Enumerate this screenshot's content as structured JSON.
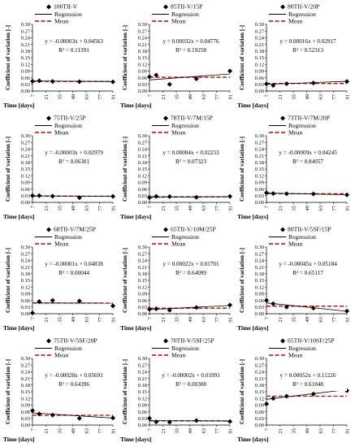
{
  "common": {
    "ylabel": "Coefficient of variation [-]",
    "xlabel": "Time [days]",
    "regression_label": "Regression",
    "mean_label": "Mean",
    "colors": {
      "points": "#000000",
      "regression": "#000000",
      "mean": "#c00000"
    }
  },
  "chart_data": [
    {
      "type": "scatter",
      "title": "100TII-V",
      "equation": "y = -0.00003x + 0.04563",
      "r2": "R² = 0.11391",
      "x": [
        7,
        14,
        28,
        56,
        91
      ],
      "y": [
        0.044,
        0.046,
        0.043,
        0.042,
        0.041
      ],
      "regression": [
        0.0454,
        0.0429
      ],
      "mean": 0.043,
      "xticks": [
        "7",
        "21",
        "35",
        "49",
        "63",
        "77",
        "91"
      ],
      "yticks": [
        "0.00",
        "0.03",
        "0.06",
        "0.09",
        "0.12",
        "0.15",
        "0.18",
        "0.21",
        "0.24",
        "0.27",
        "0.30"
      ],
      "xlim": [
        7,
        91
      ],
      "ylim": [
        0,
        0.3
      ]
    },
    {
      "type": "scatter",
      "title": "85TII-V/15P",
      "equation": "y = 0.00032x + 0.04776",
      "r2": "R² = 0.19258",
      "x": [
        7,
        14,
        28,
        56,
        91
      ],
      "y": [
        0.064,
        0.072,
        0.03,
        0.055,
        0.09
      ],
      "regression": [
        0.05,
        0.0769
      ],
      "mean": 0.062,
      "xticks": [
        "7",
        "21",
        "35",
        "49",
        "63",
        "77",
        "91"
      ],
      "yticks": [
        "0.00",
        "0.03",
        "0.06",
        "0.09",
        "0.12",
        "0.15",
        "0.18",
        "0.21",
        "0.24",
        "0.27",
        "0.30"
      ],
      "xlim": [
        7,
        91
      ],
      "ylim": [
        0,
        0.3
      ]
    },
    {
      "type": "scatter",
      "title": "80TII-V/20P",
      "equation": "y = 0.00016x + 0.02917",
      "r2": "R² = 0.52313",
      "x": [
        7,
        14,
        28,
        56,
        91
      ],
      "y": [
        0.032,
        0.025,
        0.033,
        0.036,
        0.043
      ],
      "regression": [
        0.0303,
        0.0437
      ],
      "mean": 0.034,
      "xticks": [
        "7",
        "21",
        "35",
        "49",
        "63",
        "77",
        "91"
      ],
      "yticks": [
        "0.00",
        "0.03",
        "0.06",
        "0.09",
        "0.12",
        "0.15",
        "0.18",
        "0.21",
        "0.24",
        "0.27",
        "0.30"
      ],
      "xlim": [
        7,
        91
      ],
      "ylim": [
        0,
        0.3
      ]
    },
    {
      "type": "scatter",
      "title": "75TII-V/25P",
      "equation": "y = -0.00003x + 0.02979",
      "r2": "R² = 0.06301",
      "x": [
        7,
        14,
        28,
        56,
        91
      ],
      "y": [
        0.03,
        0.03,
        0.028,
        0.021,
        0.027
      ],
      "regression": [
        0.0296,
        0.0271
      ],
      "mean": 0.028,
      "xticks": [
        "7",
        "21",
        "35",
        "49",
        "63",
        "77",
        "91"
      ],
      "yticks": [
        "0.00",
        "0.03",
        "0.06",
        "0.09",
        "0.12",
        "0.15",
        "0.18",
        "0.21",
        "0.24",
        "0.27",
        "0.30"
      ],
      "xlim": [
        7,
        91
      ],
      "ylim": [
        0,
        0.3
      ]
    },
    {
      "type": "scatter",
      "title": "78TII-V/7M/15P",
      "equation": "y = 0.00004x + 0.02233",
      "r2": "R² = 0.07323",
      "x": [
        7,
        14,
        28,
        56,
        91
      ],
      "y": [
        0.022,
        0.027,
        0.026,
        0.023,
        0.027
      ],
      "regression": [
        0.0226,
        0.026
      ],
      "mean": 0.025,
      "xticks": [
        "7",
        "21",
        "35",
        "49",
        "63",
        "77",
        "91"
      ],
      "yticks": [
        "0.00",
        "0.03",
        "0.06",
        "0.09",
        "0.12",
        "0.15",
        "0.18",
        "0.21",
        "0.24",
        "0.27",
        "0.30"
      ],
      "xlim": [
        7,
        91
      ],
      "ylim": [
        0,
        0.3
      ]
    },
    {
      "type": "scatter",
      "title": "73TII-V/7M/20P",
      "equation": "y = -0.00009x + 0.04245",
      "r2": "R² = 0.84057",
      "x": [
        7,
        14,
        28,
        56,
        91
      ],
      "y": [
        0.043,
        0.04,
        0.039,
        0.038,
        0.034
      ],
      "regression": [
        0.0418,
        0.0343
      ],
      "mean": 0.039,
      "xticks": [
        "7",
        "21",
        "35",
        "49",
        "63",
        "77",
        "91"
      ],
      "yticks": [
        "0.00",
        "0.03",
        "0.06",
        "0.09",
        "0.12",
        "0.15",
        "0.18",
        "0.21",
        "0.24",
        "0.27",
        "0.30"
      ],
      "xlim": [
        7,
        91
      ],
      "ylim": [
        0,
        0.3
      ]
    },
    {
      "type": "scatter",
      "title": "68TII-V/7M/25P",
      "equation": "y = -0.00001x + 0.04838",
      "r2": "R² = 0.00044",
      "x": [
        7,
        14,
        28,
        56,
        91
      ],
      "y": [
        0.003,
        0.055,
        0.06,
        0.057,
        0.035
      ],
      "regression": [
        0.0483,
        0.0475
      ],
      "mean": 0.048,
      "xticks": [
        "7",
        "21",
        "35",
        "49",
        "63",
        "77",
        "91"
      ],
      "yticks": [
        "0.00",
        "0.03",
        "0.06",
        "0.09",
        "0.12",
        "0.15",
        "0.18",
        "0.21",
        "0.24",
        "0.27",
        "0.30"
      ],
      "xlim": [
        7,
        91
      ],
      "ylim": [
        0,
        0.3
      ]
    },
    {
      "type": "scatter",
      "title": "65TII-V/10M/25P",
      "equation": "y = 0.00022x + 0.01701",
      "r2": "R² = 0.64099",
      "x": [
        7,
        14,
        28,
        56,
        91
      ],
      "y": [
        0.02,
        0.022,
        0.016,
        0.028,
        0.039
      ],
      "regression": [
        0.0186,
        0.037
      ],
      "mean": 0.025,
      "xticks": [
        "7",
        "21",
        "35",
        "49",
        "63",
        "77",
        "91"
      ],
      "yticks": [
        "0.00",
        "0.03",
        "0.06",
        "0.09",
        "0.12",
        "0.15",
        "0.18",
        "0.21",
        "0.24",
        "0.27",
        "0.30"
      ],
      "xlim": [
        7,
        91
      ],
      "ylim": [
        0,
        0.3
      ]
    },
    {
      "type": "scatter",
      "title": "80TII-V/5SF/15P",
      "equation": "y = -0.00045x + 0.05184",
      "r2": "R² = 0.65117",
      "x": [
        7,
        14,
        28,
        56,
        91
      ],
      "y": [
        0.06,
        0.045,
        0.03,
        0.025,
        0.012
      ],
      "regression": [
        0.0487,
        0.0109
      ],
      "mean": 0.034,
      "xticks": [
        "7",
        "21",
        "35",
        "49",
        "63",
        "77",
        "91"
      ],
      "yticks": [
        "0.00",
        "0.03",
        "0.06",
        "0.09",
        "0.12",
        "0.15",
        "0.18",
        "0.21",
        "0.24",
        "0.27",
        "0.30"
      ],
      "xlim": [
        7,
        91
      ],
      "ylim": [
        0,
        0.3
      ]
    },
    {
      "type": "scatter",
      "title": "75TII-V/5SF/20P",
      "equation": "y = -0.00028x + 0.05691",
      "r2": "R² = 0.64396",
      "x": [
        7,
        14,
        28,
        56,
        91
      ],
      "y": [
        0.065,
        0.05,
        0.045,
        0.03,
        0.032
      ],
      "regression": [
        0.0549,
        0.0314
      ],
      "mean": 0.044,
      "xticks": [
        "7",
        "21",
        "35",
        "49",
        "63",
        "77",
        "91"
      ],
      "yticks": [
        "0.00",
        "0.03",
        "0.06",
        "0.09",
        "0.12",
        "0.15",
        "0.18",
        "0.21",
        "0.24",
        "0.27",
        "0.30"
      ],
      "xlim": [
        7,
        91
      ],
      "ylim": [
        0,
        0.3
      ]
    },
    {
      "type": "scatter",
      "title": "70TII-V/5SF/25P",
      "equation": "y = -0.00002x + 0.01991",
      "r2": "R² = 0.00308",
      "x": [
        7,
        14,
        28,
        56,
        91
      ],
      "y": [
        0.03,
        0.014,
        0.013,
        0.02,
        0.016
      ],
      "regression": [
        0.0198,
        0.0181
      ],
      "mean": 0.019,
      "xticks": [
        "7",
        "21",
        "35",
        "49",
        "63",
        "77",
        "91"
      ],
      "yticks": [
        "0.00",
        "0.03",
        "0.06",
        "0.09",
        "0.12",
        "0.15",
        "0.18",
        "0.21",
        "0.24",
        "0.27",
        "0.30"
      ],
      "xlim": [
        7,
        91
      ],
      "ylim": [
        0,
        0.3
      ]
    },
    {
      "type": "scatter",
      "title": "65TII-V/10SF/25P",
      "equation": "y = 0.00052x + 0.11226",
      "r2": "R² = 0.61848",
      "x": [
        7,
        14,
        28,
        56,
        91
      ],
      "y": [
        0.095,
        0.12,
        0.13,
        0.14,
        0.155
      ],
      "regression": [
        0.1159,
        0.1596
      ],
      "mean": 0.13,
      "xticks": [
        "7",
        "21",
        "35",
        "49",
        "63",
        "77",
        "91"
      ],
      "yticks": [
        "0.00",
        "0.03",
        "0.06",
        "0.09",
        "0.12",
        "0.15",
        "0.18",
        "0.21",
        "0.24",
        "0.27",
        "0.30"
      ],
      "xlim": [
        7,
        91
      ],
      "ylim": [
        0,
        0.3
      ]
    }
  ]
}
